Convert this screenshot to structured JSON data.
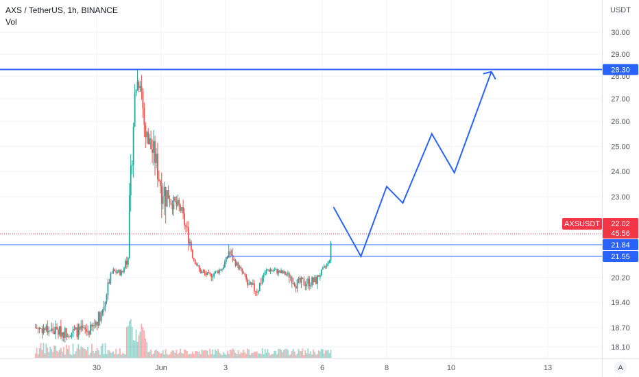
{
  "header": {
    "symbol_line": "AXS / TetherUS, 1h, BINANCE",
    "indicator": "Vol"
  },
  "price_axis": {
    "currency": "USDT",
    "ticks": [
      {
        "label": "30.00",
        "value": 30.0
      },
      {
        "label": "29.00",
        "value": 29.0
      },
      {
        "label": "28.00",
        "value": 28.0
      },
      {
        "label": "27.00",
        "value": 27.0
      },
      {
        "label": "26.00",
        "value": 26.0
      },
      {
        "label": "25.00",
        "value": 25.0
      },
      {
        "label": "24.00",
        "value": 24.0
      },
      {
        "label": "23.00",
        "value": 23.0
      },
      {
        "label": "20.20",
        "value": 20.2
      },
      {
        "label": "19.40",
        "value": 19.4
      },
      {
        "label": "18.70",
        "value": 18.7
      },
      {
        "label": "18.10",
        "value": 18.1
      }
    ],
    "auto_scale_button": "A"
  },
  "time_axis": {
    "ticks": [
      {
        "label": "30",
        "day": 30
      },
      {
        "label": "Jun",
        "day": 32
      },
      {
        "label": "3",
        "day": 34
      },
      {
        "label": "6",
        "day": 37
      },
      {
        "label": "8",
        "day": 39
      },
      {
        "label": "10",
        "day": 41
      },
      {
        "label": "13",
        "day": 44
      }
    ]
  },
  "price_labels": {
    "symbol_tag": "AXSUSDT",
    "current_price": "22.02",
    "countdown": "45:56",
    "level_mid": "21.84",
    "level_low": "21.55",
    "level_top": "28.30"
  },
  "colors": {
    "up": "#26a69a",
    "down": "#ef5350",
    "drawing": "#2962ff",
    "current_price": "#f23645",
    "text": "#131722",
    "axis_text": "#50535e",
    "grid": "#f0f3fa"
  },
  "chart_data": {
    "type": "candlestick",
    "x_unit": "day (May 29 = 29, Jun 1 = 32)",
    "ylim": [
      17.95,
      30.75
    ],
    "xlim": [
      28.1,
      45.4
    ],
    "grid": true,
    "price_series": [
      {
        "day": 28.1,
        "price": 18.7
      },
      {
        "day": 29.0,
        "price": 18.55
      },
      {
        "day": 29.8,
        "price": 18.6
      },
      {
        "day": 30.2,
        "price": 19.2
      },
      {
        "day": 30.5,
        "price": 20.6
      },
      {
        "day": 30.8,
        "price": 20.5
      },
      {
        "day": 31.0,
        "price": 22.1
      },
      {
        "day": 31.2,
        "price": 27.5
      },
      {
        "day": 31.35,
        "price": 28.0
      },
      {
        "day": 31.5,
        "price": 25.5
      },
      {
        "day": 31.8,
        "price": 24.6
      },
      {
        "day": 32.0,
        "price": 23.4
      },
      {
        "day": 32.3,
        "price": 22.9
      },
      {
        "day": 32.6,
        "price": 22.7
      },
      {
        "day": 32.9,
        "price": 21.9
      },
      {
        "day": 33.2,
        "price": 20.6
      },
      {
        "day": 33.5,
        "price": 20.3
      },
      {
        "day": 33.9,
        "price": 20.8
      },
      {
        "day": 34.1,
        "price": 21.7
      },
      {
        "day": 34.4,
        "price": 20.9
      },
      {
        "day": 34.7,
        "price": 19.9
      },
      {
        "day": 35.0,
        "price": 19.8
      },
      {
        "day": 35.3,
        "price": 20.7
      },
      {
        "day": 35.6,
        "price": 20.6
      },
      {
        "day": 35.9,
        "price": 20.4
      },
      {
        "day": 36.2,
        "price": 20.0
      },
      {
        "day": 36.5,
        "price": 20.05
      },
      {
        "day": 36.8,
        "price": 20.1
      },
      {
        "day": 37.0,
        "price": 20.6
      },
      {
        "day": 37.2,
        "price": 21.2
      },
      {
        "day": 37.3,
        "price": 22.02
      }
    ],
    "annotations": {
      "resistance_level": 28.3,
      "current_price": 22.02,
      "horizontal_line": 21.84,
      "breakout_line": {
        "start_day": 34.05,
        "price": 21.55
      },
      "projection_path": [
        {
          "day": 37.35,
          "price": 22.75
        },
        {
          "day": 38.2,
          "price": 21.55
        },
        {
          "day": 39.0,
          "price": 23.4
        },
        {
          "day": 39.5,
          "price": 22.85
        },
        {
          "day": 40.4,
          "price": 25.5
        },
        {
          "day": 41.1,
          "price": 23.95
        },
        {
          "day": 42.25,
          "price": 28.2
        }
      ]
    }
  }
}
